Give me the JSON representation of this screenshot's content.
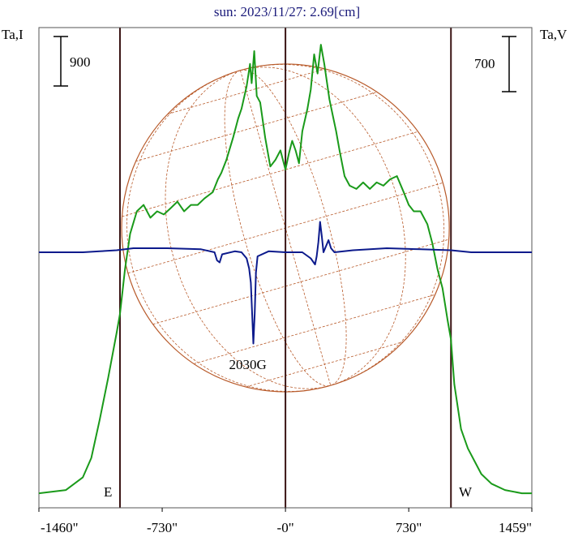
{
  "chart_data": {
    "type": "line",
    "title": "sun: 2023/11/27: 2.69[cm]",
    "ylabel_left": "Ta,I",
    "ylabel_right": "Ta,V",
    "xlim": [
      -1460,
      1459
    ],
    "x_ticks": [
      {
        "value": -1460,
        "label": "-1460\""
      },
      {
        "value": -730,
        "label": "-730\""
      },
      {
        "value": 0,
        "label": "-0\""
      },
      {
        "value": 730,
        "label": "730\""
      },
      {
        "value": 1459,
        "label": "1459\""
      }
    ],
    "vertical_markers": [
      -980,
      0,
      980
    ],
    "limb_labels": {
      "east": "E",
      "west": "W"
    },
    "scale_bars": {
      "left": "900",
      "right": "700"
    },
    "annotation": {
      "text": "2030G",
      "x": -190
    },
    "solar_disk_radius_arcsec": 970,
    "colors": {
      "intensity": "#1a9a1a",
      "polarization": "#0c1a8c",
      "disk": "#b85a2a",
      "markers": "#3a1414"
    },
    "series": [
      {
        "key": "I",
        "points": [
          [
            -1460,
            0.02
          ],
          [
            -1300,
            0.03
          ],
          [
            -1200,
            0.07
          ],
          [
            -1150,
            0.13
          ],
          [
            -1100,
            0.25
          ],
          [
            -1050,
            0.38
          ],
          [
            -1000,
            0.52
          ],
          [
            -980,
            0.58
          ],
          [
            -950,
            0.72
          ],
          [
            -920,
            0.83
          ],
          [
            -880,
            0.9
          ],
          [
            -840,
            0.92
          ],
          [
            -800,
            0.88
          ],
          [
            -760,
            0.9
          ],
          [
            -720,
            0.89
          ],
          [
            -680,
            0.91
          ],
          [
            -640,
            0.93
          ],
          [
            -600,
            0.9
          ],
          [
            -560,
            0.92
          ],
          [
            -520,
            0.92
          ],
          [
            -480,
            0.94
          ],
          [
            -430,
            0.96
          ],
          [
            -400,
            1.0
          ],
          [
            -380,
            1.02
          ],
          [
            -350,
            1.06
          ],
          [
            -310,
            1.13
          ],
          [
            -280,
            1.19
          ],
          [
            -260,
            1.22
          ],
          [
            -230,
            1.29
          ],
          [
            -210,
            1.36
          ],
          [
            -200,
            1.3
          ],
          [
            -185,
            1.4
          ],
          [
            -170,
            1.26
          ],
          [
            -150,
            1.24
          ],
          [
            -120,
            1.13
          ],
          [
            -90,
            1.04
          ],
          [
            -60,
            1.06
          ],
          [
            -30,
            1.09
          ],
          [
            0,
            1.03
          ],
          [
            20,
            1.08
          ],
          [
            40,
            1.12
          ],
          [
            60,
            1.09
          ],
          [
            80,
            1.05
          ],
          [
            100,
            1.15
          ],
          [
            130,
            1.22
          ],
          [
            150,
            1.28
          ],
          [
            170,
            1.39
          ],
          [
            190,
            1.33
          ],
          [
            210,
            1.42
          ],
          [
            230,
            1.36
          ],
          [
            260,
            1.25
          ],
          [
            280,
            1.2
          ],
          [
            300,
            1.15
          ],
          [
            320,
            1.09
          ],
          [
            350,
            1.01
          ],
          [
            380,
            0.98
          ],
          [
            420,
            0.97
          ],
          [
            460,
            0.99
          ],
          [
            500,
            0.97
          ],
          [
            540,
            0.99
          ],
          [
            580,
            0.98
          ],
          [
            620,
            1.0
          ],
          [
            660,
            1.01
          ],
          [
            700,
            0.96
          ],
          [
            730,
            0.92
          ],
          [
            760,
            0.9
          ],
          [
            800,
            0.9
          ],
          [
            840,
            0.86
          ],
          [
            870,
            0.8
          ],
          [
            900,
            0.72
          ],
          [
            930,
            0.66
          ],
          [
            960,
            0.56
          ],
          [
            980,
            0.5
          ],
          [
            1000,
            0.36
          ],
          [
            1040,
            0.22
          ],
          [
            1080,
            0.16
          ],
          [
            1120,
            0.12
          ],
          [
            1160,
            0.08
          ],
          [
            1220,
            0.05
          ],
          [
            1300,
            0.03
          ],
          [
            1400,
            0.02
          ],
          [
            1459,
            0.02
          ]
        ]
      },
      {
        "key": "V",
        "points": [
          [
            -1460,
            0.0
          ],
          [
            -1200,
            0.0
          ],
          [
            -1100,
            0.005
          ],
          [
            -1000,
            0.01
          ],
          [
            -900,
            0.02
          ],
          [
            -700,
            0.02
          ],
          [
            -500,
            0.015
          ],
          [
            -420,
            0.0
          ],
          [
            -405,
            -0.04
          ],
          [
            -390,
            -0.05
          ],
          [
            -375,
            -0.01
          ],
          [
            -300,
            0.005
          ],
          [
            -260,
            0.0
          ],
          [
            -230,
            -0.03
          ],
          [
            -215,
            -0.08
          ],
          [
            -205,
            -0.15
          ],
          [
            -195,
            -0.35
          ],
          [
            -190,
            -0.45
          ],
          [
            -182,
            -0.3
          ],
          [
            -175,
            -0.1
          ],
          [
            -165,
            -0.02
          ],
          [
            -100,
            0.005
          ],
          [
            0,
            0.0
          ],
          [
            100,
            0.0
          ],
          [
            150,
            -0.03
          ],
          [
            175,
            -0.06
          ],
          [
            185,
            -0.02
          ],
          [
            195,
            0.05
          ],
          [
            205,
            0.15
          ],
          [
            215,
            0.08
          ],
          [
            225,
            0.0
          ],
          [
            240,
            0.03
          ],
          [
            255,
            0.06
          ],
          [
            270,
            0.02
          ],
          [
            290,
            0.0
          ],
          [
            400,
            0.01
          ],
          [
            600,
            0.02
          ],
          [
            800,
            0.015
          ],
          [
            980,
            0.01
          ],
          [
            1100,
            0.0
          ],
          [
            1300,
            0.0
          ],
          [
            1459,
            0.0
          ]
        ]
      }
    ]
  }
}
